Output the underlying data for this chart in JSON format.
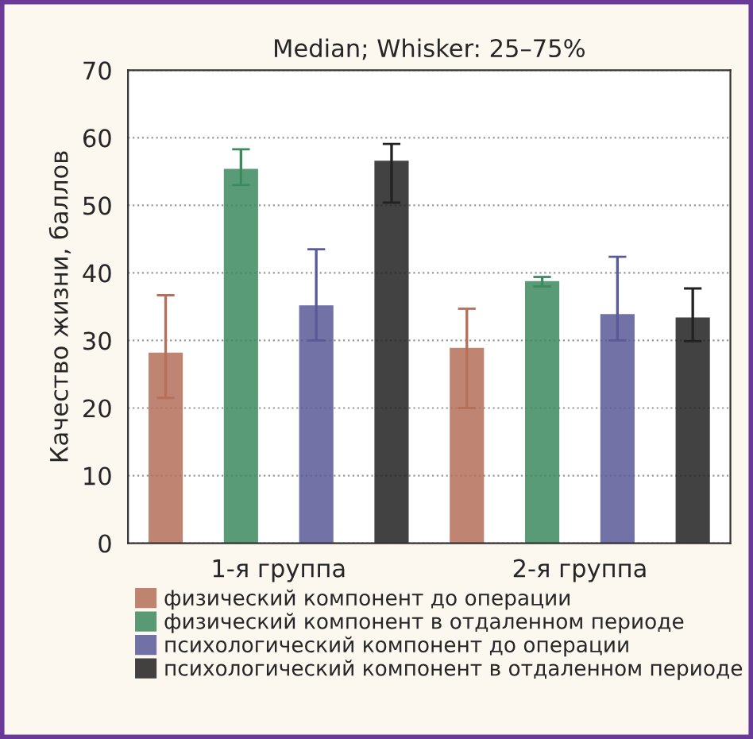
{
  "chart_data": {
    "type": "bar",
    "title": "Median; Whisker: 25–75%",
    "ylabel": "Качество жизни, баллов",
    "categories": [
      "1-я группа",
      "2-я группа"
    ],
    "series": [
      {
        "name": "физический компонент до операции",
        "color": "#b5705a",
        "values": [
          28.0,
          28.7
        ],
        "errors": [
          [
            21.5,
            36.7
          ],
          [
            20.0,
            34.7
          ]
        ]
      },
      {
        "name": "физический компонент в отдаленном периоде",
        "color": "#3d8a5f",
        "values": [
          55.2,
          38.6
        ],
        "errors": [
          [
            53.0,
            58.3
          ],
          [
            38.0,
            39.4
          ]
        ]
      },
      {
        "name": "психологический компонент до операции",
        "color": "#5b5a98",
        "values": [
          35.0,
          33.7
        ],
        "errors": [
          [
            30.0,
            43.5
          ],
          [
            30.0,
            42.4
          ]
        ]
      },
      {
        "name": "психологический компонент в отдаленном периоде",
        "color": "#222222",
        "values": [
          56.4,
          33.2
        ],
        "errors": [
          [
            50.4,
            59.1
          ],
          [
            29.9,
            37.7
          ]
        ]
      }
    ],
    "ylim": [
      0,
      70
    ],
    "yticks": [
      0,
      10,
      20,
      30,
      40,
      50,
      60,
      70
    ],
    "grid": "y",
    "legend": "bottom"
  }
}
